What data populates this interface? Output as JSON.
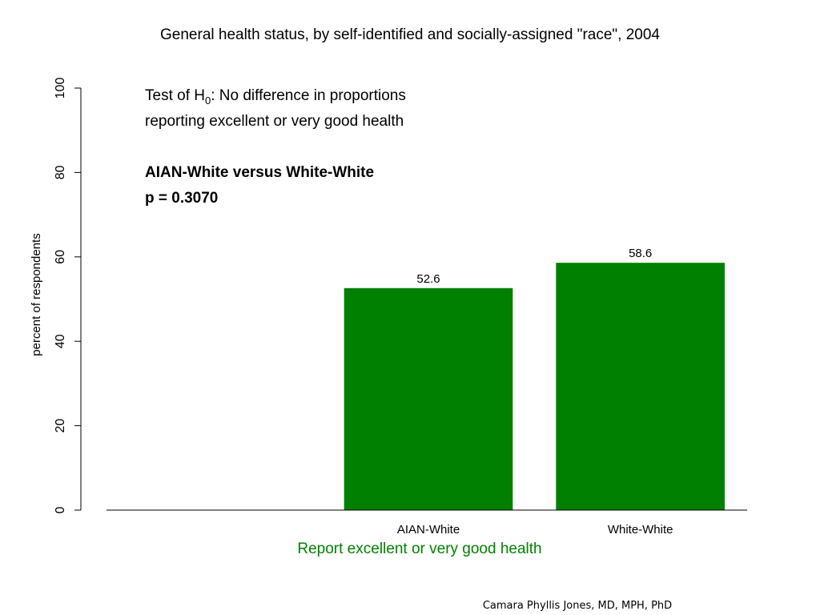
{
  "chart_data": {
    "type": "bar",
    "title": "General health status, by self-identified and socially-assigned \"race\", 2004",
    "ylabel": "percent of respondents",
    "xlabel": "Report excellent or very good health",
    "ylim": [
      0,
      100
    ],
    "yticks": [
      0,
      20,
      40,
      60,
      80,
      100
    ],
    "categories": [
      "",
      "AIAN-White",
      "White-White"
    ],
    "values": [
      null,
      52.6,
      58.6
    ],
    "value_labels": [
      "",
      "52.6",
      "58.6"
    ],
    "bar_color": "#008000",
    "xlabel_color": "#008000",
    "grid": false
  },
  "annotation": {
    "line1_pre": "Test of H",
    "line1_sub": "0",
    "line1_post": ":  No difference in proportions",
    "line2": "reporting excellent or very good health",
    "comparison": "AIAN-White versus White-White",
    "pvalue": "p = 0.3070"
  },
  "credit": "Camara Phyllis Jones, MD, MPH, PhD"
}
